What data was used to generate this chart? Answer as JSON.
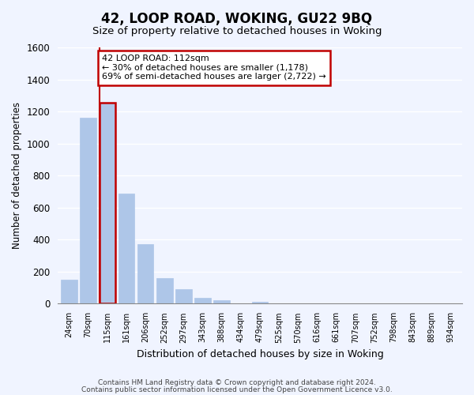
{
  "title": "42, LOOP ROAD, WOKING, GU22 9BQ",
  "subtitle": "Size of property relative to detached houses in Woking",
  "xlabel": "Distribution of detached houses by size in Woking",
  "ylabel": "Number of detached properties",
  "bins": [
    "24sqm",
    "70sqm",
    "115sqm",
    "161sqm",
    "206sqm",
    "252sqm",
    "297sqm",
    "343sqm",
    "388sqm",
    "434sqm",
    "479sqm",
    "525sqm",
    "570sqm",
    "616sqm",
    "661sqm",
    "707sqm",
    "752sqm",
    "798sqm",
    "843sqm",
    "889sqm",
    "934sqm"
  ],
  "values": [
    148,
    1163,
    1253,
    687,
    370,
    160,
    90,
    35,
    22,
    0,
    10,
    0,
    0,
    0,
    0,
    0,
    0,
    0,
    0,
    0,
    0
  ],
  "bar_color": "#aec6e8",
  "highlight_bar_index": 2,
  "highlight_color": "#c00000",
  "annotation_title": "42 LOOP ROAD: 112sqm",
  "annotation_line1": "← 30% of detached houses are smaller (1,178)",
  "annotation_line2": "69% of semi-detached houses are larger (2,722) →",
  "annotation_box_color": "#ffffff",
  "annotation_box_edge": "#c00000",
  "ylim": [
    0,
    1600
  ],
  "yticks": [
    0,
    200,
    400,
    600,
    800,
    1000,
    1200,
    1400,
    1600
  ],
  "footer1": "Contains HM Land Registry data © Crown copyright and database right 2024.",
  "footer2": "Contains public sector information licensed under the Open Government Licence v3.0.",
  "bg_color": "#f0f4ff",
  "grid_color": "#ffffff"
}
